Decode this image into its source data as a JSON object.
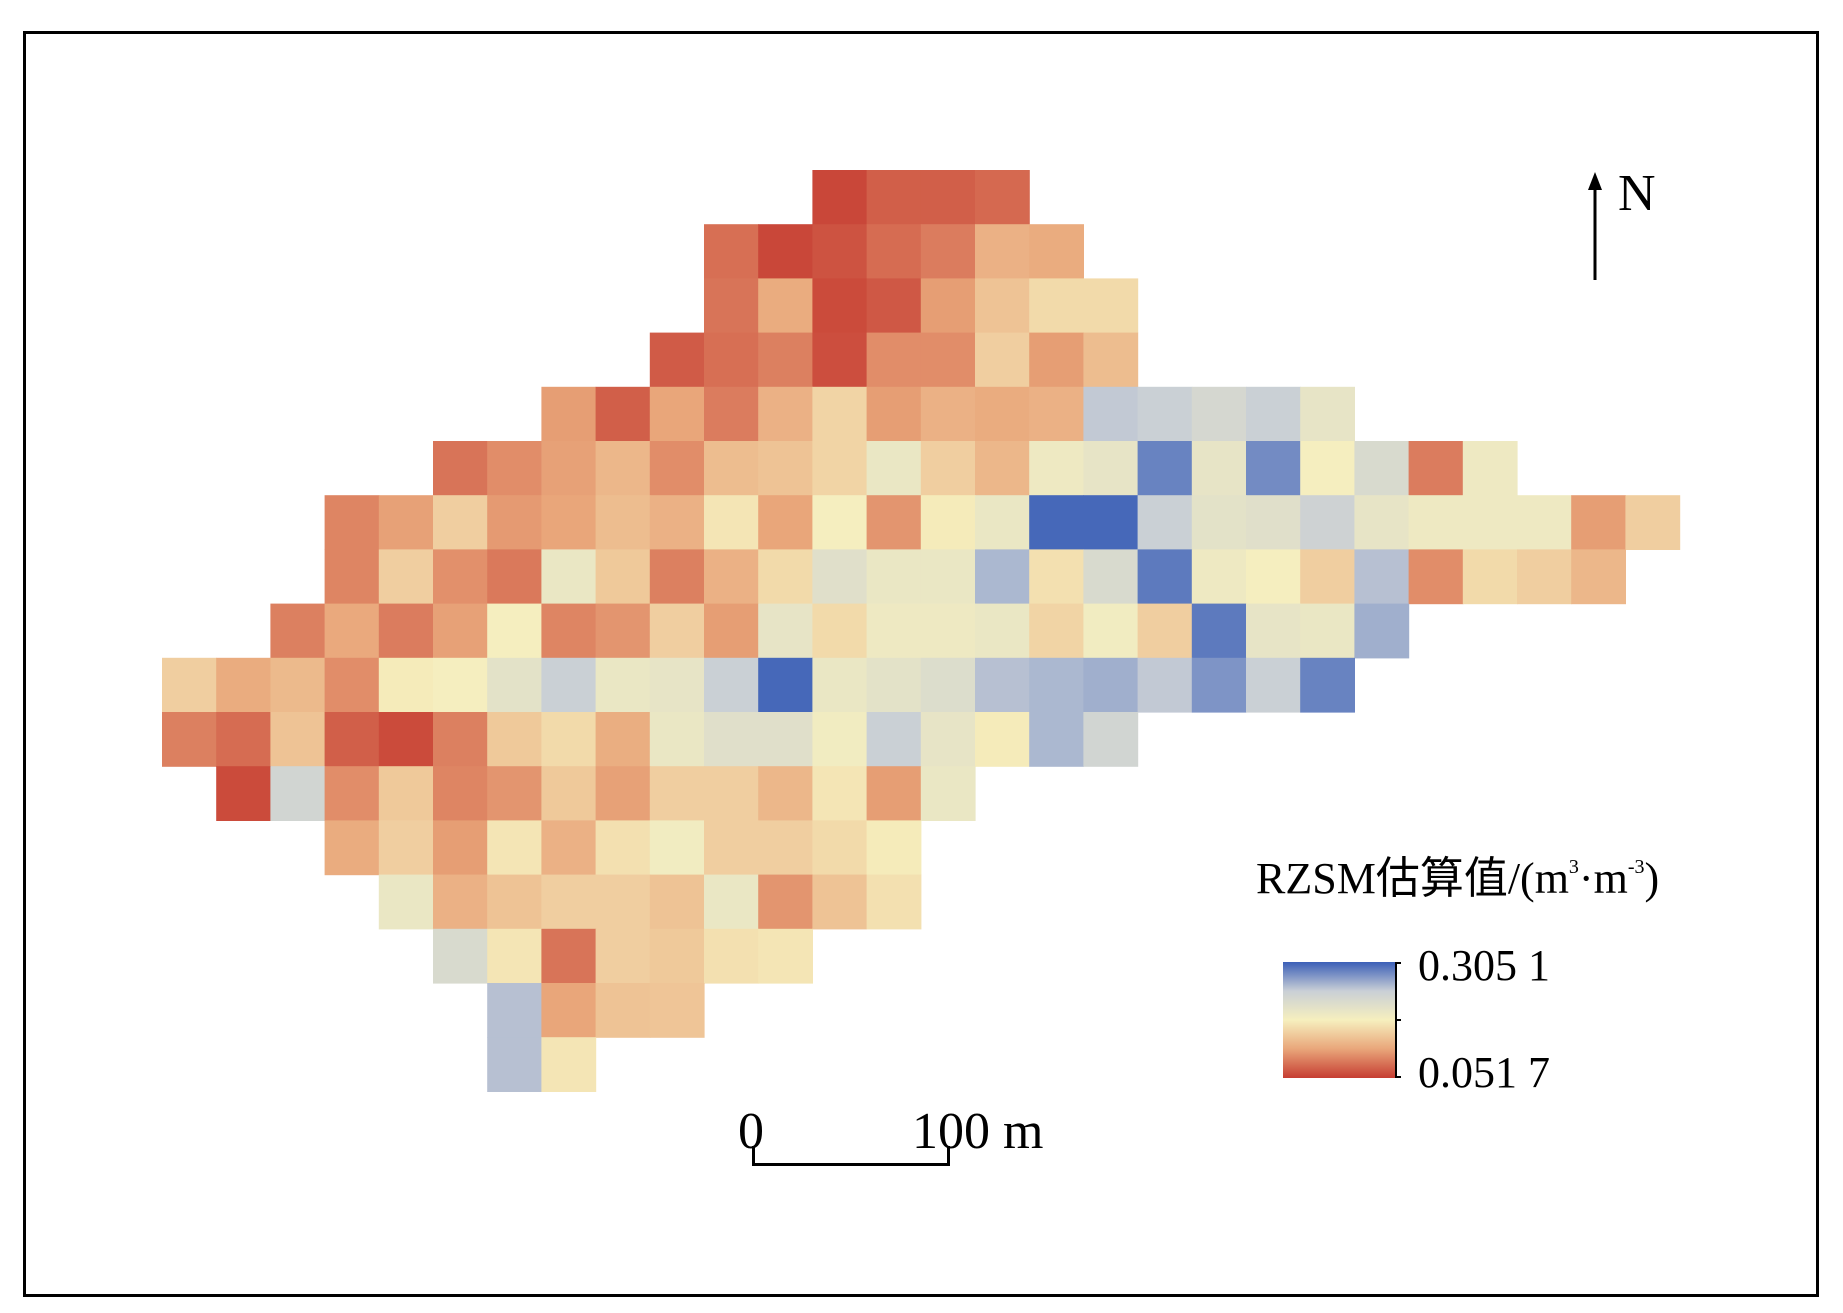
{
  "north": {
    "label": "N"
  },
  "legend": {
    "title_main": "RZSM估算值/(m",
    "title_sup1": "3",
    "title_mid": "·m",
    "title_sup2": "-3",
    "title_end": ")",
    "max_label": "0.305 1",
    "min_label": "0.051 7",
    "max_value": 0.3051,
    "min_value": 0.0517,
    "colors": {
      "low": "#c63d32",
      "mid_low": "#e9a67a",
      "mid": "#f6efbe",
      "mid_high": "#c9cfd6",
      "high": "#3b5fb7"
    }
  },
  "scale_bar": {
    "start_label": "0",
    "end_label": "100 m"
  },
  "grid": {
    "rows": [
      {
        "start": 12,
        "values": [
          0.058,
          0.072,
          0.072,
          0.078
        ]
      },
      {
        "start": 10,
        "values": [
          0.082,
          0.058,
          0.065,
          0.08,
          0.09,
          0.125,
          0.12
        ]
      },
      {
        "start": 10,
        "values": [
          0.085,
          0.12,
          0.06,
          0.068,
          0.11,
          0.14,
          0.16,
          0.16
        ]
      },
      {
        "start": 9,
        "values": [
          0.07,
          0.082,
          0.092,
          0.062,
          0.1,
          0.1,
          0.15,
          0.11,
          0.135
        ]
      },
      {
        "start": 7,
        "values": [
          0.11,
          0.072,
          0.115,
          0.09,
          0.125,
          0.155,
          0.11,
          0.125,
          0.12,
          0.125,
          0.245,
          0.24,
          0.225,
          0.24,
          0.2
        ]
      },
      {
        "start": 5,
        "values": [
          0.085,
          0.1,
          0.112,
          0.13,
          0.1,
          0.135,
          0.14,
          0.155,
          0.195,
          0.15,
          0.13,
          0.19,
          0.2,
          0.285,
          0.2,
          0.28,
          0.18,
          0.22,
          0.09,
          0.19
        ]
      },
      {
        "start": 3,
        "values": [
          0.095,
          0.112,
          0.15,
          0.108,
          0.115,
          0.135,
          0.125,
          0.17,
          0.115,
          0.18,
          0.105,
          0.175,
          0.195,
          0.3,
          0.3,
          0.24,
          0.205,
          0.21,
          0.235,
          0.2,
          0.19,
          0.19,
          0.19,
          0.11,
          0.15
        ]
      },
      {
        "start": 3,
        "values": [
          0.095,
          0.15,
          0.102,
          0.088,
          0.195,
          0.145,
          0.092,
          0.125,
          0.16,
          0.21,
          0.195,
          0.195,
          0.255,
          0.165,
          0.22,
          0.29,
          0.19,
          0.18,
          0.15,
          0.25,
          0.1,
          0.16,
          0.15,
          0.13
        ]
      },
      {
        "start": 2,
        "values": [
          0.092,
          0.118,
          0.09,
          0.112,
          0.18,
          0.095,
          0.105,
          0.15,
          0.11,
          0.2,
          0.16,
          0.19,
          0.19,
          0.195,
          0.155,
          0.185,
          0.15,
          0.29,
          0.2,
          0.195,
          0.26
        ]
      },
      {
        "start": 0,
        "values": [
          0.15,
          0.12,
          0.132,
          0.1,
          0.175,
          0.18,
          0.205,
          0.24,
          0.195,
          0.2,
          0.24,
          0.3,
          0.195,
          0.205,
          0.215,
          0.25,
          0.255,
          0.26,
          0.245,
          0.275,
          0.24,
          0.285
        ]
      },
      {
        "start": 0,
        "values": [
          0.092,
          0.08,
          0.14,
          0.072,
          0.06,
          0.092,
          0.145,
          0.16,
          0.122,
          0.195,
          0.21,
          0.21,
          0.185,
          0.24,
          0.2,
          0.175,
          0.255,
          0.23
        ]
      },
      {
        "start": 1,
        "values": [
          0.06,
          0.23,
          0.1,
          0.145,
          0.095,
          0.105,
          0.145,
          0.112,
          0.15,
          0.15,
          0.13,
          0.17,
          0.11,
          0.195
        ]
      },
      {
        "start": 3,
        "values": [
          0.12,
          0.15,
          0.11,
          0.17,
          0.125,
          0.165,
          0.185,
          0.15,
          0.15,
          0.16,
          0.175
        ]
      },
      {
        "start": 4,
        "values": [
          0.195,
          0.125,
          0.14,
          0.15,
          0.15,
          0.14,
          0.195,
          0.105,
          0.14,
          0.165
        ]
      },
      {
        "start": 5,
        "values": [
          0.22,
          0.17,
          0.085,
          0.15,
          0.145,
          0.165,
          0.17
        ]
      },
      {
        "start": 6,
        "values": [
          0.25,
          0.115,
          0.14,
          0.142
        ]
      },
      {
        "start": 6,
        "values": [
          0.25,
          0.17
        ]
      }
    ]
  }
}
